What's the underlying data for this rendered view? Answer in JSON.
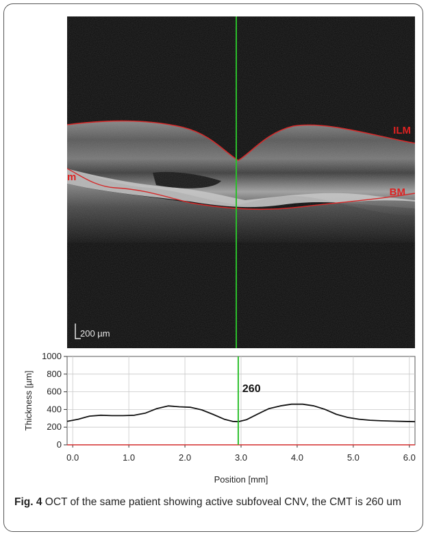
{
  "oct_image": {
    "scale_bar_label": "200 µm",
    "layer_labels": {
      "top": "ILM",
      "bottom": "BM",
      "left_partial": "m"
    },
    "line_colors": {
      "boundary": "#d42a2a",
      "marker": "#2bbf2b"
    }
  },
  "chart_data": {
    "type": "line",
    "xlabel": "Position [mm]",
    "ylabel": "Thickness [µm]",
    "xlim": [
      -0.1,
      6.1
    ],
    "ylim": [
      0,
      1000
    ],
    "x_ticks": [
      "0.0",
      "1.0",
      "2.0",
      "3.0",
      "4.0",
      "5.0",
      "6.0"
    ],
    "y_ticks": [
      "0",
      "200",
      "400",
      "600",
      "800",
      "1000"
    ],
    "grid": true,
    "marker_x": 2.95,
    "marker_label": "260",
    "series": [
      {
        "x": [
          -0.1,
          0.1,
          0.3,
          0.5,
          0.7,
          0.9,
          1.1,
          1.3,
          1.5,
          1.7,
          1.9,
          2.1,
          2.3,
          2.5,
          2.7,
          2.85,
          2.95,
          3.1,
          3.3,
          3.5,
          3.7,
          3.9,
          4.1,
          4.3,
          4.5,
          4.7,
          4.9,
          5.1,
          5.3,
          5.5,
          5.7,
          5.9,
          6.1
        ],
        "y": [
          265,
          290,
          325,
          335,
          330,
          330,
          335,
          360,
          410,
          440,
          430,
          425,
          395,
          345,
          290,
          265,
          262,
          285,
          350,
          410,
          440,
          460,
          460,
          440,
          400,
          345,
          310,
          290,
          278,
          272,
          268,
          265,
          262
        ]
      }
    ]
  },
  "caption": {
    "fig_label": "Fig. 4",
    "text": " OCT of the same patient showing active subfoveal CNV, the CMT is 260 um"
  }
}
